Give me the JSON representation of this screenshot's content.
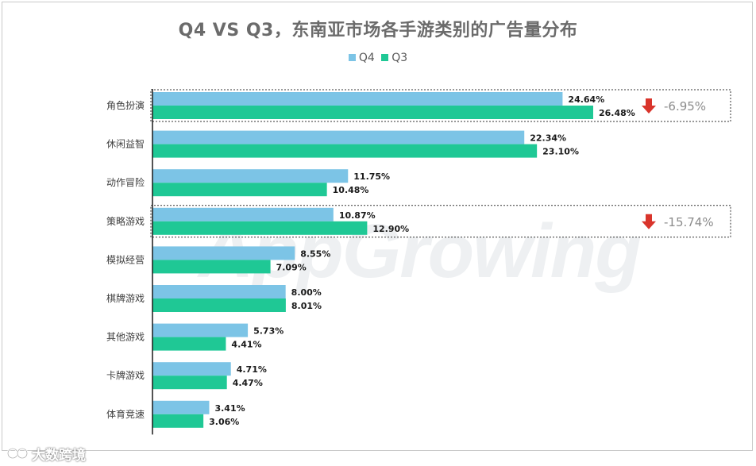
{
  "chart_data": {
    "type": "bar",
    "orientation": "horizontal",
    "title": "Q4 VS Q3，东南亚市场各手游类别的广告量分布",
    "categories": [
      "角色扮演",
      "休闲益智",
      "动作冒险",
      "策略游戏",
      "模拟经营",
      "棋牌游戏",
      "其他游戏",
      "卡牌游戏",
      "体育竞速"
    ],
    "series": [
      {
        "name": "Q4",
        "color": "#7cc4e6",
        "values": [
          24.64,
          22.34,
          11.75,
          10.87,
          8.55,
          8.0,
          5.73,
          4.71,
          3.41
        ]
      },
      {
        "name": "Q3",
        "color": "#1fc895",
        "values": [
          26.48,
          23.1,
          10.48,
          12.9,
          7.09,
          8.01,
          4.41,
          4.47,
          3.06
        ]
      }
    ],
    "data_labels": {
      "Q4": [
        "24.64%",
        "22.34%",
        "11.75%",
        "10.87%",
        "8.55%",
        "8.00%",
        "5.73%",
        "4.71%",
        "3.41%"
      ],
      "Q3": [
        "26.48%",
        "23.10%",
        "10.48%",
        "12.90%",
        "7.09%",
        "8.01%",
        "4.41%",
        "4.47%",
        "3.06%"
      ]
    },
    "annotations": [
      {
        "category": "角色扮演",
        "text": "-6.95%",
        "direction": "down",
        "arrow_color": "#d9342b",
        "text_color": "#8c8c8c"
      },
      {
        "category": "策略游戏",
        "text": "-15.74%",
        "direction": "down",
        "arrow_color": "#d9342b",
        "text_color": "#8c8c8c"
      }
    ],
    "xlim": [
      0,
      30
    ],
    "legend_position": "top-center",
    "grid": false,
    "xlabel": "",
    "ylabel": ""
  },
  "legend": {
    "q4": "Q4",
    "q3": "Q3"
  },
  "watermark": "AppGrowing",
  "footer_brand": "大数跨境"
}
